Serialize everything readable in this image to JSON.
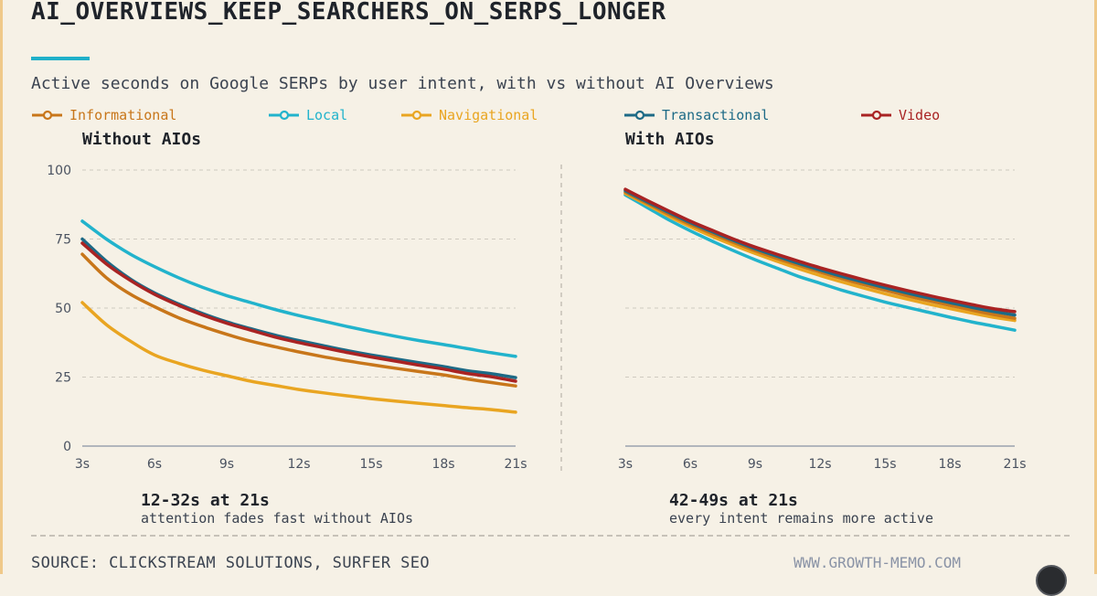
{
  "title": "AI_OVERVIEWS_KEEP_SEARCHERS_ON_SERPS_LONGER",
  "subtitle": "Active seconds on Google SERPs by user intent, with vs without AI Overviews",
  "colors": {
    "accent": "#1fb0c9",
    "Informational": "#c8761a",
    "Local": "#22b3cc",
    "Navigational": "#e9a521",
    "Transactional": "#1d6a86",
    "Video": "#a92323"
  },
  "legend": [
    {
      "name": "Informational",
      "color": "#c8761a"
    },
    {
      "name": "Local",
      "color": "#22b3cc"
    },
    {
      "name": "Navigational",
      "color": "#e9a521"
    },
    {
      "name": "Transactional",
      "color": "#1d6a86"
    },
    {
      "name": "Video",
      "color": "#a92323"
    }
  ],
  "panels": {
    "left_title": "Without AIOs",
    "right_title": "With AIOs"
  },
  "notes": {
    "left_big": "12-32s at 21s",
    "left_small": "attention fades fast without AIOs",
    "right_big": "42-49s at 21s",
    "right_small": "every intent remains more active"
  },
  "footer": {
    "source": "SOURCE: CLICKSTREAM SOLUTIONS, SURFER SEO",
    "site": "WWW.GROWTH-MEMO.COM"
  },
  "chart_data": [
    {
      "type": "line",
      "title": "Without AIOs",
      "x": [
        3,
        4,
        5,
        6,
        7,
        8,
        9,
        10,
        11,
        12,
        13,
        14,
        15,
        16,
        17,
        18,
        19,
        20,
        21
      ],
      "x_ticks": [
        "3s",
        "6s",
        "9s",
        "12s",
        "15s",
        "18s",
        "21s"
      ],
      "x_tick_values": [
        3,
        6,
        9,
        12,
        15,
        18,
        21
      ],
      "ylim": [
        0,
        100
      ],
      "y_ticks": [
        0,
        25,
        50,
        75,
        100
      ],
      "series": [
        {
          "name": "Navigational",
          "values": [
            52,
            44,
            38,
            33,
            30,
            27.5,
            25.5,
            23.5,
            22,
            20.5,
            19.3,
            18.2,
            17.2,
            16.3,
            15.5,
            14.7,
            13.9,
            13.2,
            12.3
          ]
        },
        {
          "name": "Informational",
          "values": [
            69.5,
            61,
            55,
            50.5,
            46.5,
            43.3,
            40.5,
            38,
            36,
            34.1,
            32.4,
            30.9,
            29.5,
            28.2,
            27,
            25.8,
            24.3,
            23,
            21.8
          ]
        },
        {
          "name": "Transactional",
          "values": [
            75,
            67,
            60.5,
            55.5,
            51.5,
            48,
            45,
            42.5,
            40.2,
            38.2,
            36.4,
            34.6,
            33,
            31.6,
            30.2,
            28.8,
            27.3,
            26.2,
            24.8
          ]
        },
        {
          "name": "Video",
          "values": [
            73.5,
            66,
            60,
            55,
            51,
            47.5,
            44.5,
            42,
            39.5,
            37.5,
            35.7,
            33.9,
            32.3,
            30.8,
            29.3,
            27.9,
            26.3,
            25.1,
            23.5
          ]
        },
        {
          "name": "Local",
          "values": [
            81.5,
            75,
            69.5,
            65,
            61,
            57.5,
            54.5,
            52,
            49.5,
            47.3,
            45.3,
            43.3,
            41.5,
            39.8,
            38.2,
            36.8,
            35.3,
            33.8,
            32.5
          ]
        }
      ]
    },
    {
      "type": "line",
      "title": "With AIOs",
      "x": [
        3,
        4,
        5,
        6,
        7,
        8,
        9,
        10,
        11,
        12,
        13,
        14,
        15,
        16,
        17,
        18,
        19,
        20,
        21
      ],
      "x_ticks": [
        "3s",
        "6s",
        "9s",
        "12s",
        "15s",
        "18s",
        "21s"
      ],
      "x_tick_values": [
        3,
        6,
        9,
        12,
        15,
        18,
        21
      ],
      "ylim": [
        0,
        100
      ],
      "y_ticks": [
        0,
        25,
        50,
        75,
        100
      ],
      "series": [
        {
          "name": "Local",
          "values": [
            91,
            86.5,
            82,
            78,
            74.3,
            70.8,
            67.5,
            64.5,
            61.5,
            59,
            56.5,
            54.3,
            52.2,
            50.3,
            48.5,
            46.7,
            45,
            43.5,
            42
          ]
        },
        {
          "name": "Navigational",
          "values": [
            91.5,
            87.5,
            83.3,
            79.5,
            76,
            72.8,
            69.8,
            67,
            64.3,
            61.8,
            59.5,
            57.3,
            55.2,
            53.3,
            51.5,
            49.8,
            48.2,
            46.7,
            45.5
          ]
        },
        {
          "name": "Informational",
          "values": [
            92,
            88,
            84,
            80.3,
            77,
            73.8,
            70.8,
            68,
            65.5,
            63,
            60.7,
            58.5,
            56.5,
            54.5,
            52.7,
            51,
            49.3,
            47.7,
            46.3
          ]
        },
        {
          "name": "Transactional",
          "values": [
            92.5,
            88.5,
            84.7,
            81,
            77.7,
            74.5,
            71.5,
            68.8,
            66.2,
            63.8,
            61.5,
            59.4,
            57.4,
            55.5,
            53.7,
            52,
            50.3,
            48.8,
            47.5
          ]
        },
        {
          "name": "Video",
          "values": [
            93,
            89,
            85.2,
            81.5,
            78.2,
            75,
            72.1,
            69.5,
            67,
            64.6,
            62.4,
            60.3,
            58.3,
            56.4,
            54.6,
            52.9,
            51.3,
            49.8,
            48.7
          ]
        }
      ]
    }
  ]
}
